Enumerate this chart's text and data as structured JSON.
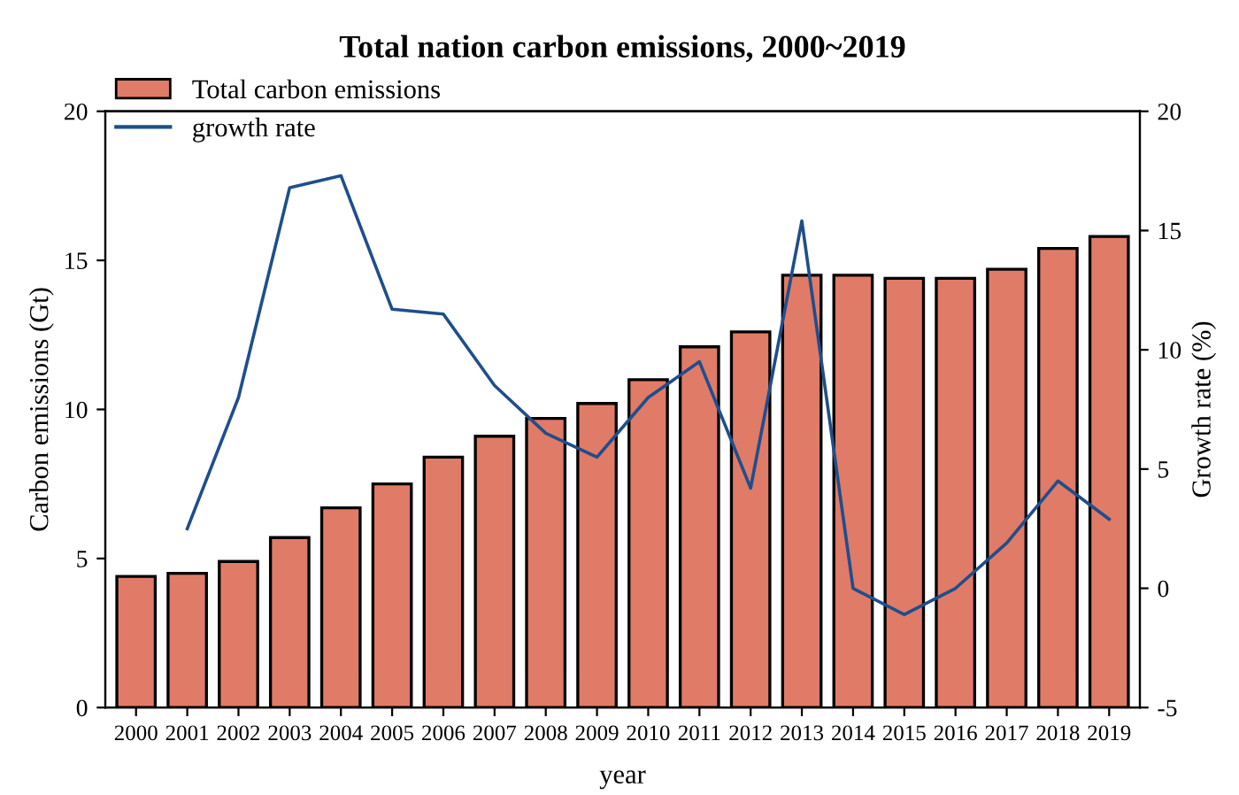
{
  "chart_data": {
    "type": "bar",
    "title": "Total nation carbon emissions, 2000~2019",
    "xlabel": "year",
    "ylabel": "Carbon emissions (Gt)",
    "y2label": "Growth rate (%)",
    "categories": [
      "2000",
      "2001",
      "2002",
      "2003",
      "2004",
      "2005",
      "2006",
      "2007",
      "2008",
      "2009",
      "2010",
      "2011",
      "2012",
      "2013",
      "2014",
      "2015",
      "2016",
      "2017",
      "2018",
      "2019"
    ],
    "series": [
      {
        "name": "Total carbon emissions",
        "color": "#e07b67",
        "values": [
          4.4,
          4.5,
          4.9,
          5.7,
          6.7,
          7.5,
          8.4,
          9.1,
          9.7,
          10.2,
          11.0,
          12.1,
          12.6,
          14.5,
          14.5,
          14.4,
          14.4,
          14.7,
          15.4,
          15.8
        ]
      },
      {
        "name": "growth rate",
        "type": "line",
        "axis": "y2",
        "color": "#1f4e8c",
        "values": [
          null,
          2.5,
          8.0,
          16.8,
          17.3,
          11.7,
          11.5,
          8.5,
          6.5,
          5.5,
          8.0,
          9.5,
          4.2,
          15.4,
          0.0,
          -1.1,
          0.0,
          1.9,
          4.5,
          2.9
        ]
      }
    ],
    "ylim": [
      0,
      20
    ],
    "yticks": [
      0,
      5,
      10,
      15,
      20
    ],
    "y2lim": [
      -5,
      20
    ],
    "y2ticks": [
      -5,
      0,
      5,
      10,
      15,
      20
    ],
    "grid": false,
    "legend": "top left",
    "marker": "none",
    "line_style": "solid"
  }
}
